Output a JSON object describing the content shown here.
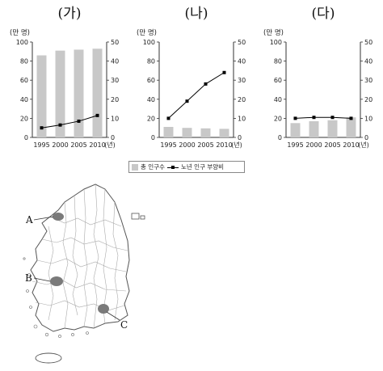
{
  "chart_data": [
    {
      "type": "bar+line",
      "title": "(가)",
      "left_axis_label": "(만 명)",
      "x_unit": "(년)",
      "categories": [
        "1995",
        "2000",
        "2005",
        "2010"
      ],
      "left_ylim": [
        0,
        100
      ],
      "left_ticks": [
        "0",
        "20",
        "40",
        "60",
        "80",
        "100"
      ],
      "right_ylim": [
        0,
        50
      ],
      "right_ticks": [
        "0",
        "10",
        "20",
        "30",
        "40",
        "50"
      ],
      "series": [
        {
          "name": "총 인구수",
          "axis": "left",
          "kind": "bar",
          "values": [
            86,
            91,
            92,
            93
          ]
        },
        {
          "name": "노년 인구 부양비",
          "axis": "right",
          "kind": "line",
          "values": [
            5,
            6.5,
            8.5,
            11.5
          ]
        }
      ]
    },
    {
      "type": "bar+line",
      "title": "(나)",
      "left_axis_label": "(만 명)",
      "x_unit": "(년)",
      "categories": [
        "1995",
        "2000",
        "2005",
        "2010"
      ],
      "left_ylim": [
        0,
        100
      ],
      "left_ticks": [
        "0",
        "20",
        "40",
        "60",
        "80",
        "100"
      ],
      "right_ylim": [
        0,
        50
      ],
      "right_ticks": [
        "0",
        "10",
        "20",
        "30",
        "40",
        "50"
      ],
      "series": [
        {
          "name": "총 인구수",
          "axis": "left",
          "kind": "bar",
          "values": [
            11,
            10,
            9.5,
            9
          ]
        },
        {
          "name": "노년 인구 부양비",
          "axis": "right",
          "kind": "line",
          "values": [
            10,
            19,
            28,
            34
          ]
        }
      ]
    },
    {
      "type": "bar+line",
      "title": "(다)",
      "left_axis_label": "(만 명)",
      "x_unit": "(년)",
      "categories": [
        "1995",
        "2000",
        "2005",
        "2010"
      ],
      "left_ylim": [
        0,
        100
      ],
      "left_ticks": [
        "0",
        "20",
        "40",
        "60",
        "80",
        "100"
      ],
      "right_ylim": [
        0,
        50
      ],
      "right_ticks": [
        "0",
        "10",
        "20",
        "30",
        "40",
        "50"
      ],
      "series": [
        {
          "name": "총 인구수",
          "axis": "left",
          "kind": "bar",
          "values": [
            15,
            17,
            18,
            21
          ]
        },
        {
          "name": "노년 인구 부양비",
          "axis": "right",
          "kind": "line",
          "values": [
            10,
            10.5,
            10.5,
            10
          ]
        }
      ]
    }
  ],
  "legend": {
    "placement": "bottom-center",
    "bar_label": "총 인구수",
    "line_label": "노년 인구 부양비"
  },
  "map": {
    "labels": [
      "A",
      "B",
      "C"
    ]
  },
  "colors": {
    "bar": "#c8c8c8",
    "line": "#000000",
    "highlight": "#7a7a7a",
    "outline": "#555555"
  }
}
